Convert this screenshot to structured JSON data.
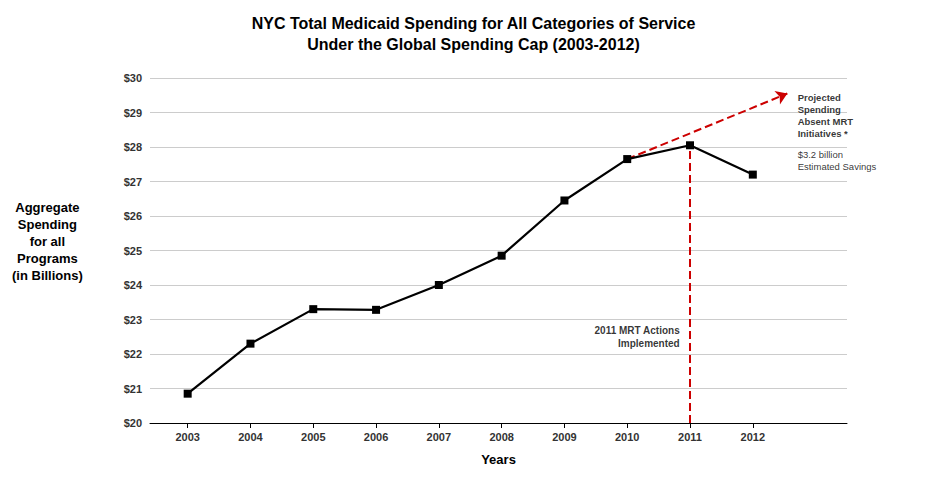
{
  "chart_data": {
    "type": "line",
    "title": "NYC Total Medicaid Spending for All Categories of Service\nUnder the Global Spending Cap (2003-2012)",
    "xlabel": "Years",
    "ylabel": "Aggregate\nSpending\nfor all\nPrograms\n(in Billions)",
    "x": [
      2003,
      2004,
      2005,
      2006,
      2007,
      2008,
      2009,
      2010,
      2011,
      2012
    ],
    "values": [
      20.85,
      22.3,
      23.3,
      23.28,
      24.0,
      24.85,
      26.45,
      27.65,
      28.05,
      27.2
    ],
    "color": "#000000",
    "marker": "square",
    "line_style": "solid",
    "lines": [
      {
        "x": [
          2011,
          2011
        ],
        "values": [
          20,
          28.05
        ],
        "color": "#cc0000",
        "line_style": "dashed"
      },
      {
        "x": [
          2010,
          2012.55
        ],
        "values": [
          27.65,
          29.55
        ],
        "color": "#cc0000",
        "line_style": "dashed",
        "marker": "arrow"
      }
    ],
    "annotations": [
      "2011 MRT Actions\nImplemented",
      "$3.2 billion\nEstimated Savings",
      "Projected\nSpending\nAbsent MRT\nInitiatives *"
    ],
    "xlim": [
      2002.4,
      2013.5
    ],
    "xticks": [
      2003,
      2004,
      2005,
      2006,
      2007,
      2008,
      2009,
      2010,
      2011,
      2012
    ],
    "ylim": [
      20,
      30
    ],
    "yticks": [
      {
        "value": 20,
        "label": "$20"
      },
      {
        "value": 21,
        "label": "$21"
      },
      {
        "value": 22,
        "label": "$22"
      },
      {
        "value": 23,
        "label": "$23"
      },
      {
        "value": 24,
        "label": "$24"
      },
      {
        "value": 25,
        "label": "$25"
      },
      {
        "value": 26,
        "label": "$26"
      },
      {
        "value": 27,
        "label": "$27"
      },
      {
        "value": 28,
        "label": "$28"
      },
      {
        "value": 29,
        "label": "$29"
      },
      {
        "value": 30,
        "label": "$30"
      }
    ],
    "grid": true
  }
}
